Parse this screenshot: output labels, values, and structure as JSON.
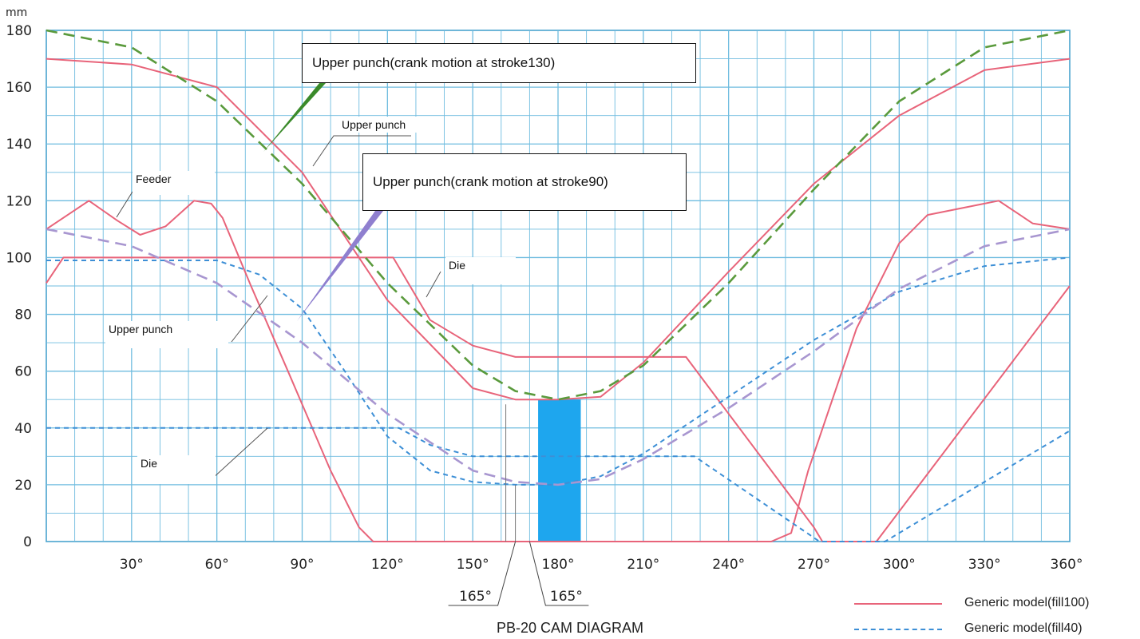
{
  "chart_data": {
    "type": "line",
    "title": "PB-20 CAM DIAGRAM",
    "ylabel": "mm",
    "xlabel": "",
    "xlim": [
      0,
      360
    ],
    "ylim": [
      0,
      180
    ],
    "x_ticks": [
      "30°",
      "60°",
      "90°",
      "120°",
      "150°",
      "180°",
      "210°",
      "240°",
      "270°",
      "300°",
      "330°",
      "360°"
    ],
    "y_ticks": [
      "0",
      "20",
      "40",
      "60",
      "80",
      "100",
      "120",
      "140",
      "160",
      "180"
    ],
    "grid": true,
    "extra_x_labels": [
      "165°",
      "165°"
    ],
    "series": [
      {
        "name": "Generic model(fill100)",
        "member": "Upper punch",
        "style": "solid",
        "color": "#e8647a",
        "points": [
          [
            0,
            170
          ],
          [
            30,
            168
          ],
          [
            60,
            160
          ],
          [
            90,
            130
          ],
          [
            120,
            85
          ],
          [
            150,
            54
          ],
          [
            165,
            50
          ],
          [
            180,
            50
          ],
          [
            195,
            51
          ],
          [
            210,
            63
          ],
          [
            240,
            95
          ],
          [
            270,
            126
          ],
          [
            300,
            150
          ],
          [
            330,
            166
          ],
          [
            360,
            170
          ]
        ]
      },
      {
        "name": "Generic model(fill100)",
        "member": "Die",
        "style": "solid",
        "color": "#e8647a",
        "points": [
          [
            0,
            91
          ],
          [
            6,
            100
          ],
          [
            122,
            100
          ],
          [
            135,
            78
          ],
          [
            150,
            69
          ],
          [
            165,
            65
          ],
          [
            225,
            65
          ],
          [
            270,
            5
          ],
          [
            273,
            0
          ],
          [
            292,
            0
          ],
          [
            360,
            90
          ]
        ]
      },
      {
        "name": "Generic model(fill100)",
        "member": "Feeder",
        "style": "solid",
        "color": "#e8647a",
        "points": [
          [
            0,
            110
          ],
          [
            15,
            120
          ],
          [
            25,
            113
          ],
          [
            33,
            108
          ],
          [
            42,
            111
          ],
          [
            52,
            120
          ],
          [
            58,
            119
          ],
          [
            62,
            114
          ],
          [
            72,
            90
          ],
          [
            85,
            60
          ],
          [
            100,
            25
          ],
          [
            110,
            5
          ],
          [
            115,
            0
          ],
          [
            255,
            0
          ],
          [
            262,
            3
          ],
          [
            268,
            25
          ],
          [
            285,
            75
          ],
          [
            300,
            105
          ],
          [
            310,
            115
          ],
          [
            335,
            120
          ],
          [
            347,
            112
          ],
          [
            360,
            110
          ]
        ]
      },
      {
        "name": "Generic model(fill40)",
        "member": "Upper punch",
        "style": "dashed",
        "color": "#3d8fd6",
        "points": [
          [
            0,
            99
          ],
          [
            60,
            99
          ],
          [
            75,
            94
          ],
          [
            90,
            82
          ],
          [
            105,
            60
          ],
          [
            120,
            37
          ],
          [
            135,
            25
          ],
          [
            150,
            21
          ],
          [
            165,
            20
          ],
          [
            180,
            20
          ],
          [
            195,
            23
          ],
          [
            210,
            31
          ],
          [
            240,
            51
          ],
          [
            270,
            71
          ],
          [
            300,
            88
          ],
          [
            330,
            97
          ],
          [
            360,
            100
          ]
        ]
      },
      {
        "name": "Generic model(fill40)",
        "member": "Die",
        "style": "dashed",
        "color": "#3d8fd6",
        "points": [
          [
            0,
            40
          ],
          [
            124,
            40
          ],
          [
            135,
            34
          ],
          [
            150,
            30
          ],
          [
            165,
            30
          ],
          [
            228,
            30
          ],
          [
            272,
            0
          ],
          [
            295,
            0
          ],
          [
            360,
            39
          ]
        ]
      },
      {
        "name": "",
        "member": "Upper punch(crank motion at stroke130)",
        "style": "long-dash",
        "color": "#5a9a3c",
        "points": [
          [
            0,
            180
          ],
          [
            30,
            174
          ],
          [
            60,
            155
          ],
          [
            90,
            126
          ],
          [
            120,
            91
          ],
          [
            150,
            62
          ],
          [
            165,
            53
          ],
          [
            180,
            50
          ],
          [
            195,
            53
          ],
          [
            210,
            62
          ],
          [
            240,
            91
          ],
          [
            270,
            124
          ],
          [
            300,
            155
          ],
          [
            330,
            174
          ],
          [
            360,
            180
          ]
        ]
      },
      {
        "name": "",
        "member": "Upper punch(crank motion at stroke90)",
        "style": "long-dash",
        "color": "#a896d0",
        "points": [
          [
            0,
            110
          ],
          [
            30,
            104
          ],
          [
            60,
            91
          ],
          [
            90,
            70
          ],
          [
            120,
            45
          ],
          [
            150,
            25
          ],
          [
            165,
            21
          ],
          [
            180,
            20
          ],
          [
            195,
            22
          ],
          [
            210,
            29
          ],
          [
            240,
            47
          ],
          [
            270,
            67
          ],
          [
            300,
            89
          ],
          [
            330,
            104
          ],
          [
            360,
            110
          ]
        ]
      }
    ],
    "highlight_band": {
      "x_from": 173,
      "x_to": 188,
      "y_from": 0,
      "y_to": 50,
      "color": "#1ea6ee"
    },
    "annotations": {
      "crank130": "Upper punch(crank motion at stroke130)",
      "crank90": "Upper punch(crank motion at stroke90)",
      "upper_punch_1": "Upper punch",
      "upper_punch_2": "Upper punch",
      "feeder": "Feeder",
      "die_1": "Die",
      "die_2": "Die"
    },
    "legend": [
      {
        "label": "Generic model(fill100)",
        "style": "solid",
        "color": "#e8647a"
      },
      {
        "label": "Generic model(fill40)",
        "style": "dashed",
        "color": "#3d8fd6"
      }
    ]
  }
}
